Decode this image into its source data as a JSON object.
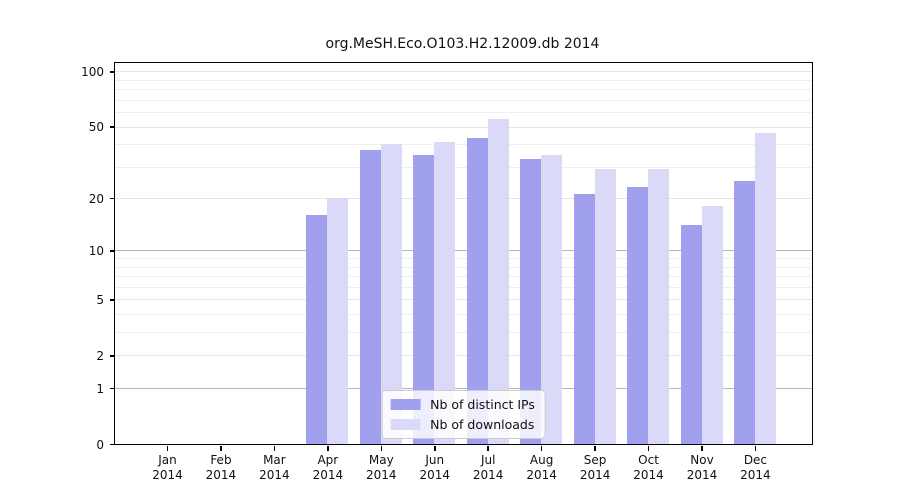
{
  "chart_data": {
    "type": "bar",
    "title": "org.MeSH.Eco.O103.H2.12009.db 2014",
    "categories": [
      {
        "month": "Jan",
        "year": "2014"
      },
      {
        "month": "Feb",
        "year": "2014"
      },
      {
        "month": "Mar",
        "year": "2014"
      },
      {
        "month": "Apr",
        "year": "2014"
      },
      {
        "month": "May",
        "year": "2014"
      },
      {
        "month": "Jun",
        "year": "2014"
      },
      {
        "month": "Jul",
        "year": "2014"
      },
      {
        "month": "Aug",
        "year": "2014"
      },
      {
        "month": "Sep",
        "year": "2014"
      },
      {
        "month": "Oct",
        "year": "2014"
      },
      {
        "month": "Nov",
        "year": "2014"
      },
      {
        "month": "Dec",
        "year": "2014"
      }
    ],
    "series": [
      {
        "name": "Nb of distinct IPs",
        "color": "#a0a0ef",
        "values": [
          0,
          0,
          0,
          16,
          37,
          35,
          43,
          33,
          21,
          23,
          14,
          25
        ]
      },
      {
        "name": "Nb of downloads",
        "color": "#dadaf8",
        "values": [
          0,
          0,
          0,
          20,
          40,
          41,
          55,
          35,
          29,
          29,
          18,
          46
        ]
      }
    ],
    "y_scale": "log1p",
    "ylim": [
      0,
      100
    ],
    "y_major_ticks": [
      0,
      1,
      2,
      5,
      10,
      20,
      50,
      100
    ],
    "y_minor_gridlines": [
      3,
      4,
      6,
      7,
      8,
      9,
      30,
      40,
      60,
      70,
      80,
      90
    ],
    "grid": true,
    "legend_position": "bottom-center",
    "background_color": "#ffffff",
    "axis_color": "#000000"
  }
}
